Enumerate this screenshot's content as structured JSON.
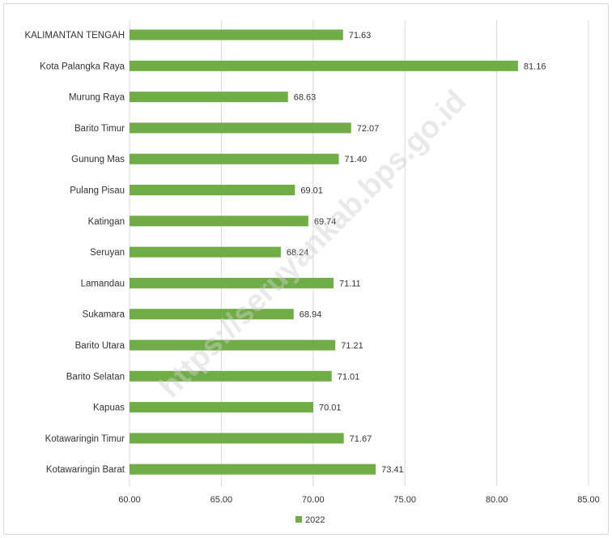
{
  "chart_data": {
    "type": "bar",
    "orientation": "horizontal",
    "categories": [
      "KALIMANTAN TENGAH",
      "Kota Palangka Raya",
      "Murung Raya",
      "Barito Timur",
      "Gunung Mas",
      "Pulang Pisau",
      "Katingan",
      "Seruyan",
      "Lamandau",
      "Sukamara",
      "Barito Utara",
      "Barito Selatan",
      "Kapuas",
      "Kotawaringin Timur",
      "Kotawaringin Barat"
    ],
    "series": [
      {
        "name": "2022",
        "color": "#70ad47",
        "values": [
          71.63,
          81.16,
          68.63,
          72.07,
          71.4,
          69.01,
          69.74,
          68.24,
          71.11,
          68.94,
          71.21,
          71.01,
          70.01,
          71.67,
          73.41
        ],
        "value_labels": [
          "71.63",
          "81.16",
          "68.63",
          "72.07",
          "71.40",
          "69.01",
          "69.74",
          "68.24",
          "71.11",
          "68.94",
          "71.21",
          "71.01",
          "70.01",
          "71.67",
          "73.41"
        ]
      }
    ],
    "xlim": [
      60,
      85
    ],
    "xticks": [
      60,
      65,
      70,
      75,
      80,
      85
    ],
    "xtick_labels": [
      "60.00",
      "65.00",
      "70.00",
      "75.00",
      "80.00",
      "85.00"
    ],
    "grid": "vertical",
    "legend": "bottom-center",
    "title": "",
    "xlabel": "",
    "ylabel": ""
  },
  "watermark": "https://seruyankab.bps.go.id"
}
